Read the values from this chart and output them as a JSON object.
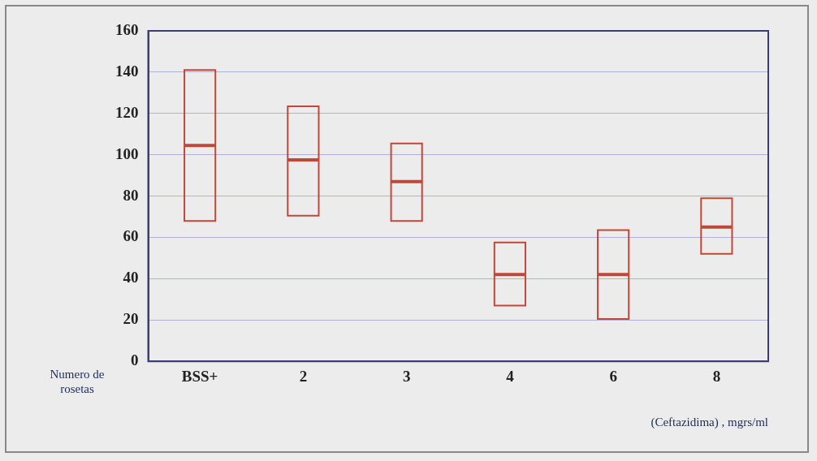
{
  "chart_data": {
    "type": "box",
    "categories": [
      "BSS+",
      "2",
      "3",
      "4",
      "6",
      "8"
    ],
    "xlabel": "(Ceftazidima) , mgrs/ml",
    "ylabel": "Numero de rosetas",
    "series": [
      {
        "color": "#c0483a",
        "boxes": [
          {
            "low": 68,
            "q1": 68,
            "median": 104.5,
            "q3": 141,
            "high": 141
          },
          {
            "low": 70.5,
            "q1": 70.5,
            "median": 97.5,
            "q3": 123.5,
            "high": 123.5
          },
          {
            "low": 68,
            "q1": 68,
            "median": 87,
            "q3": 105.5,
            "high": 105.5
          },
          {
            "low": 27,
            "q1": 27,
            "median": 42,
            "q3": 57.5,
            "high": 57.5
          },
          {
            "low": 20.5,
            "q1": 20.5,
            "median": 42,
            "q3": 63.5,
            "high": 63.5
          },
          {
            "low": 52,
            "q1": 52,
            "median": 65,
            "q3": 79,
            "high": 79
          }
        ]
      }
    ],
    "ylim": [
      0,
      160
    ],
    "yticks": [
      0,
      20,
      40,
      60,
      80,
      100,
      120,
      140,
      160
    ],
    "grid": "y",
    "legend": false
  }
}
